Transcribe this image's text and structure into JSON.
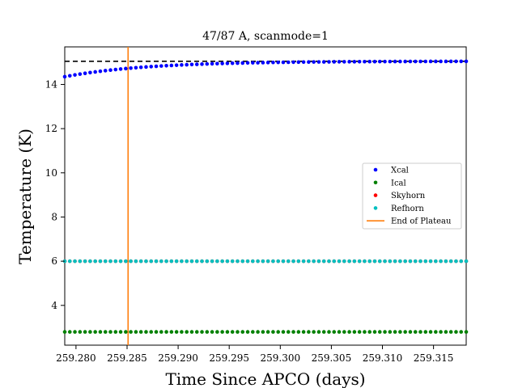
{
  "chart_data": {
    "type": "scatter",
    "title": "47/87 A, scanmode=1",
    "xlabel": "Time Since APCO (days)",
    "ylabel": "Temperature (K)",
    "xlim": [
      259.2789,
      259.3182
    ],
    "ylim": [
      2.2,
      15.7
    ],
    "x_ticks": [
      259.28,
      259.285,
      259.29,
      259.295,
      259.3,
      259.305,
      259.31,
      259.315
    ],
    "x_tick_labels": [
      "259.280",
      "259.285",
      "259.290",
      "259.295",
      "259.300",
      "259.305",
      "259.310",
      "259.315"
    ],
    "y_ticks": [
      4,
      6,
      8,
      10,
      12,
      14
    ],
    "y_tick_labels": [
      "4",
      "6",
      "8",
      "10",
      "12",
      "14"
    ],
    "x_range": [
      259.2789,
      259.3182
    ],
    "n_points": 80,
    "series": [
      {
        "name": "Xcal",
        "color": "#0000ff",
        "marker": "point",
        "profile": "exp_approach",
        "start_value": 14.35,
        "plateau_value": 15.05,
        "time_constant_days": 0.008
      },
      {
        "name": "Ical",
        "color": "#008000",
        "marker": "point",
        "profile": "constant",
        "value": 2.8
      },
      {
        "name": "Skyhorn",
        "color": "#ff0000",
        "marker": "point",
        "profile": "constant",
        "value": 6.0
      },
      {
        "name": "Refhorn",
        "color": "#00bfbf",
        "marker": "point",
        "profile": "constant",
        "value": 6.0
      }
    ],
    "reference_lines": [
      {
        "orientation": "horizontal",
        "value": 15.05,
        "color": "#000000",
        "style": "dashed"
      },
      {
        "name": "End of Plateau",
        "orientation": "vertical",
        "value": 259.2851,
        "color": "#ff7f0e",
        "style": "solid"
      }
    ],
    "legend_entries": [
      {
        "label": "Xcal",
        "color": "#0000ff",
        "kind": "marker"
      },
      {
        "label": "Ical",
        "color": "#008000",
        "kind": "marker"
      },
      {
        "label": "Skyhorn",
        "color": "#ff0000",
        "kind": "marker"
      },
      {
        "label": "Refhorn",
        "color": "#00bfbf",
        "kind": "marker"
      },
      {
        "label": "End of Plateau",
        "color": "#ff7f0e",
        "kind": "line"
      }
    ],
    "legend_position": "center-right",
    "grid": false
  }
}
